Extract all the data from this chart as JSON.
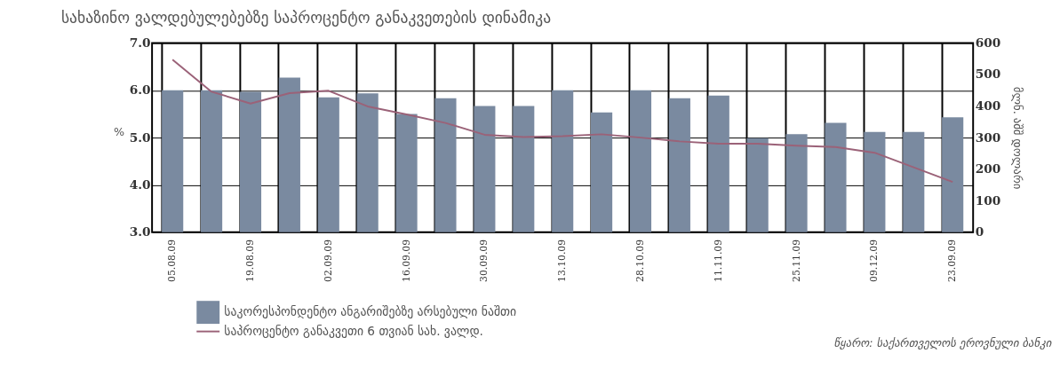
{
  "chart_data": {
    "type": "bar",
    "title": "სახაზინო ვალდებულებებზე საპროცენტო განაკვეთების დინამიკა",
    "categories": [
      "05.08.09",
      null,
      "19.08.09",
      null,
      "02.09.09",
      null,
      "16.09.09",
      null,
      "30.09.09",
      null,
      "13.10.09",
      null,
      "28.10.09",
      null,
      "11.11.09",
      null,
      "25.11.09",
      null,
      "09.12.09",
      null,
      "23.09.09"
    ],
    "series": [
      {
        "name": "საკორესპონდენტო ანგარიშებზე არსებული ნაშთი",
        "axis": "y2",
        "color": "#7a8aa0",
        "values": [
          450,
          450,
          445,
          490,
          428,
          440,
          375,
          425,
          400,
          400,
          450,
          380,
          450,
          425,
          433,
          298,
          311,
          347,
          318,
          318,
          364
        ]
      },
      {
        "name": "საპროცენტო განაკვეთი 6 თვიან სახ. ვალდ.",
        "type": "line",
        "axis": "y",
        "color": "#9b6278",
        "values": [
          6.65,
          5.97,
          5.72,
          5.94,
          5.99,
          5.66,
          5.49,
          5.31,
          5.06,
          5.01,
          5.03,
          5.07,
          5.0,
          4.92,
          4.87,
          4.87,
          4.83,
          4.8,
          4.68,
          4.37,
          4.06
        ]
      }
    ],
    "ylabel": "%",
    "y2label": "მლნ. აშშ დოლარი",
    "ylim": [
      3,
      7
    ],
    "yticks": [
      {
        "value": 3,
        "label": "3.0"
      },
      {
        "value": 4,
        "label": "4.0"
      },
      {
        "value": 5,
        "label": "5.0"
      },
      {
        "value": 6,
        "label": "6.0"
      },
      {
        "value": 7,
        "label": "7.0"
      }
    ],
    "y2lim": [
      0,
      600
    ],
    "y2ticks": [
      0,
      100,
      200,
      300,
      400,
      500,
      600
    ],
    "grid": true,
    "legend": "bottom left",
    "annotations": [
      "წყარო: საქართველოს ეროვნული ბანკი"
    ]
  }
}
